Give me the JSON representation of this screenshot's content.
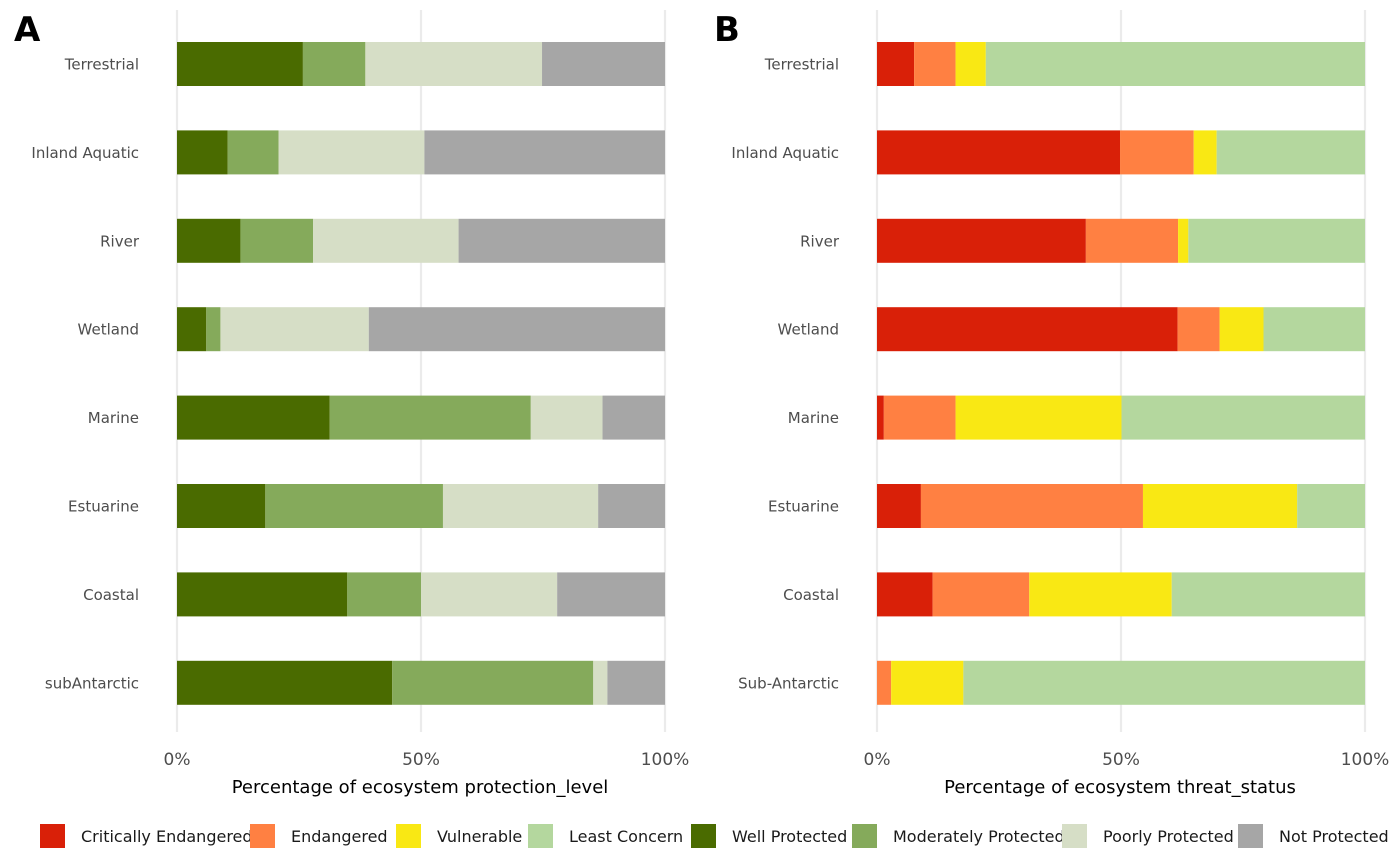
{
  "colors": {
    "Critically Endangered": "#d92008",
    "Endangered": "#ff8042",
    "Vulnerable": "#f9e814",
    "Least Concern": "#b4d79e",
    "Well Protected": "#4a6b00",
    "Moderately Protected": "#85aa5b",
    "Poorly Protected": "#d6dec6",
    "Not Protected": "#a6a6a6"
  },
  "legend": [
    "Critically Endangered",
    "Endangered",
    "Vulnerable",
    "Least Concern",
    "Well Protected",
    "Moderately Protected",
    "Poorly Protected",
    "Not Protected"
  ],
  "chart_data": [
    {
      "panel": "A",
      "type": "bar",
      "orientation": "horizontal",
      "stacked": true,
      "xlabel": "Percentage of ecosystem protection_level",
      "ylabel": "",
      "xlim": [
        0,
        100
      ],
      "x_ticks": [
        "0%",
        "50%",
        "100%"
      ],
      "grid": true,
      "legend_position": "bottom",
      "categories": [
        "Terrestrial",
        "Inland Aquatic",
        "River",
        "Wetland",
        "Marine",
        "Estuarine",
        "Coastal",
        "subAntarctic"
      ],
      "series": [
        {
          "name": "Well Protected",
          "values": [
            25.8,
            10.4,
            13.0,
            6.0,
            31.3,
            18.1,
            34.9,
            44.1
          ]
        },
        {
          "name": "Moderately Protected",
          "values": [
            12.8,
            10.4,
            14.9,
            2.9,
            41.2,
            36.4,
            15.1,
            41.2
          ]
        },
        {
          "name": "Poorly Protected",
          "values": [
            36.2,
            29.9,
            29.8,
            30.4,
            14.7,
            31.8,
            27.9,
            2.9
          ]
        },
        {
          "name": "Not Protected",
          "values": [
            25.2,
            49.3,
            42.3,
            60.7,
            12.8,
            13.7,
            22.1,
            11.8
          ]
        }
      ]
    },
    {
      "panel": "B",
      "type": "bar",
      "orientation": "horizontal",
      "stacked": true,
      "xlabel": "Percentage of ecosystem threat_status",
      "ylabel": "",
      "xlim": [
        0,
        100
      ],
      "x_ticks": [
        "0%",
        "50%",
        "100%"
      ],
      "grid": true,
      "legend_position": "bottom",
      "categories": [
        "Terrestrial",
        "Inland Aquatic",
        "River",
        "Wetland",
        "Marine",
        "Estuarine",
        "Coastal",
        "Sub-Antarctic"
      ],
      "series": [
        {
          "name": "Critically Endangered",
          "values": [
            7.6,
            49.8,
            42.8,
            61.6,
            1.4,
            9.0,
            11.4,
            0.0
          ]
        },
        {
          "name": "Endangered",
          "values": [
            8.5,
            15.1,
            18.9,
            8.6,
            14.7,
            45.5,
            19.8,
            2.9
          ]
        },
        {
          "name": "Vulnerable",
          "values": [
            6.2,
            4.7,
            2.1,
            9.0,
            34.0,
            31.6,
            29.2,
            14.8
          ]
        },
        {
          "name": "Least Concern",
          "values": [
            77.7,
            30.4,
            36.2,
            20.8,
            49.9,
            13.9,
            39.6,
            82.3
          ]
        }
      ]
    }
  ]
}
